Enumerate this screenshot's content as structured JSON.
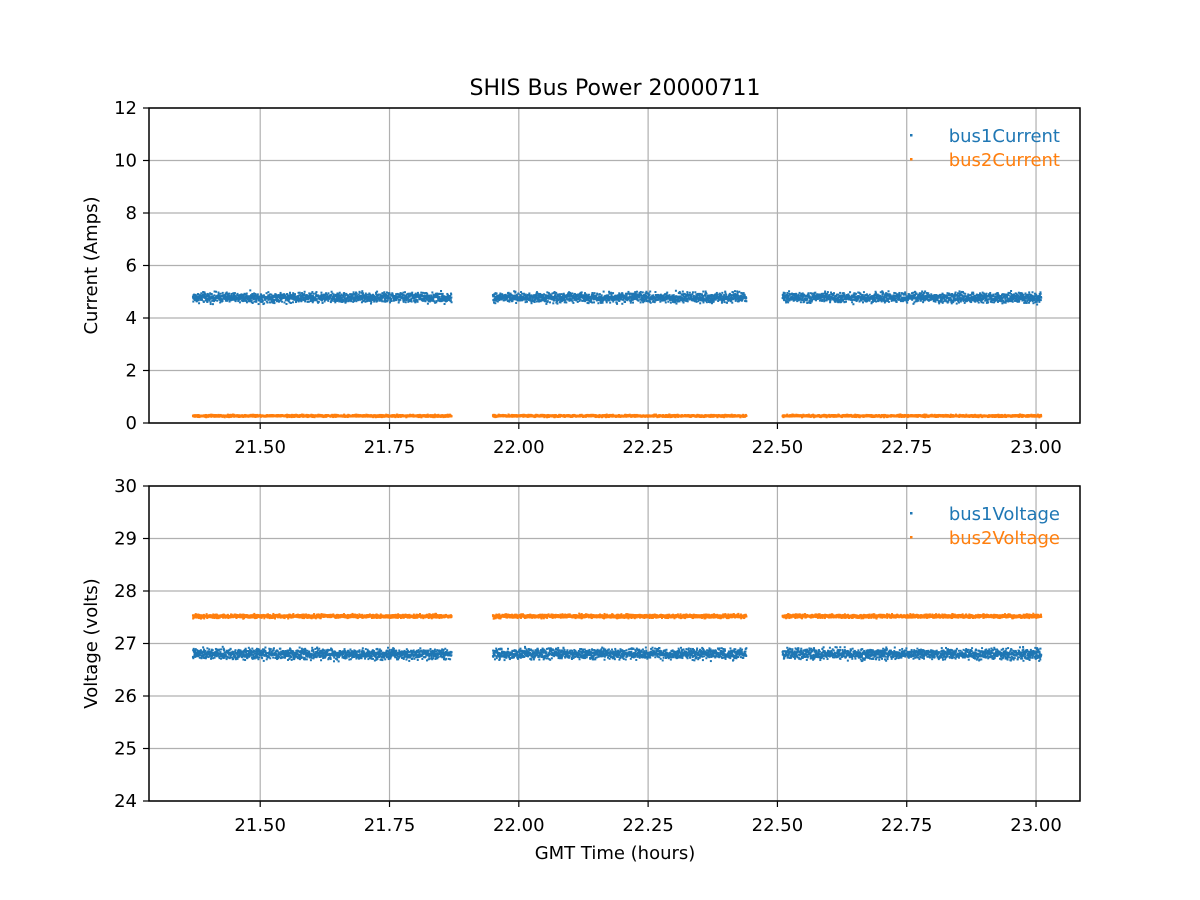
{
  "chart_data": [
    {
      "type": "scatter",
      "title": "SHIS Bus Power 20000711",
      "xlabel": "",
      "ylabel": "Current (Amps)",
      "xlim": [
        21.285,
        23.085
      ],
      "ylim": [
        0,
        12
      ],
      "xticks": [
        "21.50",
        "21.75",
        "22.00",
        "22.25",
        "22.50",
        "22.75",
        "23.00"
      ],
      "yticks": [
        "0",
        "2",
        "4",
        "6",
        "8",
        "10",
        "12"
      ],
      "grid": true,
      "legend_position": "top-right",
      "time_segments": [
        [
          21.37,
          21.87
        ],
        [
          21.95,
          22.44
        ],
        [
          22.51,
          23.01
        ]
      ],
      "series": [
        {
          "name": "bus1Current",
          "color": "#1f77b4",
          "center": 4.78,
          "spread": 0.28,
          "sample_values": [
            4.75,
            4.82,
            4.7,
            4.88,
            4.78,
            4.95,
            4.72,
            4.85
          ]
        },
        {
          "name": "bus2Current",
          "color": "#ff7f0e",
          "center": 0.27,
          "spread": 0.06,
          "sample_values": [
            0.26,
            0.28,
            0.27,
            0.29,
            0.25,
            0.27,
            0.28,
            0.26
          ]
        }
      ]
    },
    {
      "type": "scatter",
      "title": "",
      "xlabel": "GMT Time (hours)",
      "ylabel": "Voltage (volts)",
      "xlim": [
        21.285,
        23.085
      ],
      "ylim": [
        24,
        30
      ],
      "xticks": [
        "21.50",
        "21.75",
        "22.00",
        "22.25",
        "22.50",
        "22.75",
        "23.00"
      ],
      "yticks": [
        "24",
        "25",
        "26",
        "27",
        "28",
        "29",
        "30"
      ],
      "grid": true,
      "legend_position": "top-right",
      "time_segments": [
        [
          21.37,
          21.87
        ],
        [
          21.95,
          22.44
        ],
        [
          22.51,
          23.01
        ]
      ],
      "series": [
        {
          "name": "bus1Voltage",
          "color": "#1f77b4",
          "center": 26.8,
          "spread": 0.15,
          "sample_values": [
            26.78,
            26.85,
            26.72,
            26.81,
            26.9,
            26.76,
            26.83,
            26.79
          ]
        },
        {
          "name": "bus2Voltage",
          "color": "#ff7f0e",
          "center": 27.52,
          "spread": 0.05,
          "sample_values": [
            27.51,
            27.53,
            27.52,
            27.5,
            27.54,
            27.52,
            27.51,
            27.53
          ]
        }
      ]
    }
  ]
}
